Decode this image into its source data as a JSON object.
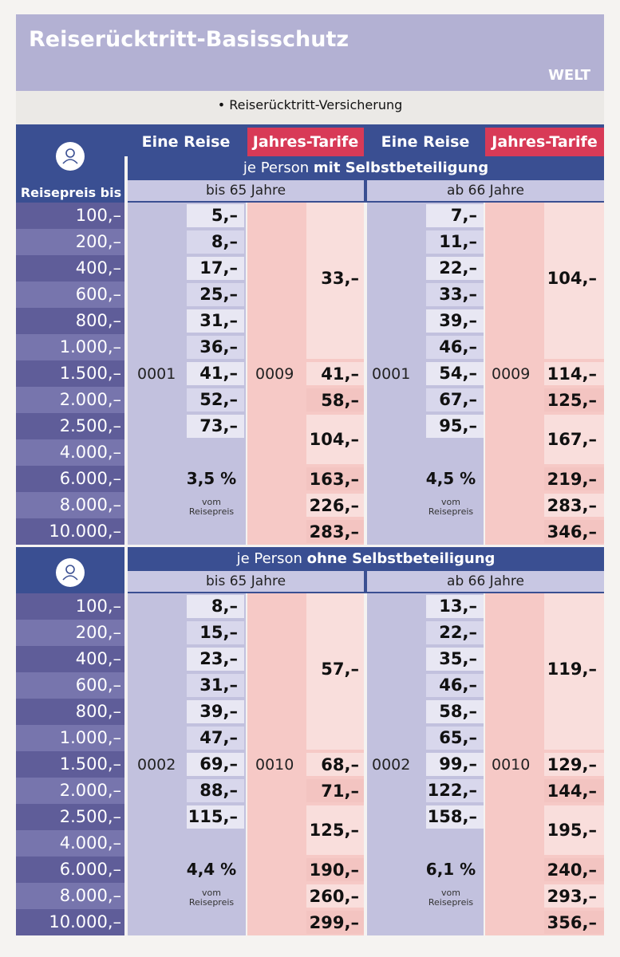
{
  "header": {
    "title": "Reiserücktritt-Basisschutz",
    "region": "WELT",
    "subtitle": "• Reiserücktritt-Versicherung"
  },
  "columns": {
    "eine_reise": "Eine Reise",
    "jahres_tarife": "Jahres-Tarife",
    "reisepreis_bis": "Reisepreis bis"
  },
  "colors": {
    "header_purple": "#b3b1d3",
    "navy": "#3a4f92",
    "red": "#d83a57",
    "row_dark": "#5f5d99",
    "row_light": "#7775ad",
    "lavender": "#c5c4e0",
    "pink": "#f6c6c6",
    "pale_pink": "#f9dedc"
  },
  "sections": [
    {
      "heading_prefix": "je Person ",
      "heading_bold": "mit Selbstbeteiligung",
      "age_left": "bis 65 Jahre",
      "age_right": "ab 66 Jahre",
      "rows": [
        "100,–",
        "200,–",
        "400,–",
        "600,–",
        "800,–",
        "1.000,–",
        "1.500,–",
        "2.000,–",
        "2.500,–",
        "4.000,–",
        "6.000,–",
        "8.000,–",
        "10.000,–"
      ],
      "code_single": "0001",
      "code_annual": "0009",
      "left_single": [
        "5,–",
        "8,–",
        "17,–",
        "25,–",
        "31,–",
        "36,–",
        "41,–",
        "52,–",
        "73,–"
      ],
      "left_pct": "3,5 %",
      "left_annual_group": "33,–",
      "left_annual": [
        "41,–",
        "58,–",
        "104,–",
        "163,–",
        "226,–",
        "283,–"
      ],
      "right_single": [
        "7,–",
        "11,–",
        "22,–",
        "33,–",
        "39,–",
        "46,–",
        "54,–",
        "67,–",
        "95,–"
      ],
      "right_pct": "4,5 %",
      "right_annual_group": "104,–",
      "right_annual": [
        "114,–",
        "125,–",
        "167,–",
        "219,–",
        "283,–",
        "346,–"
      ],
      "vom": "vom",
      "reisepreis": "Reisepreis"
    },
    {
      "heading_prefix": "je Person ",
      "heading_bold": "ohne Selbstbeteiligung",
      "age_left": "bis 65 Jahre",
      "age_right": "ab 66 Jahre",
      "rows": [
        "100,–",
        "200,–",
        "400,–",
        "600,–",
        "800,–",
        "1.000,–",
        "1.500,–",
        "2.000,–",
        "2.500,–",
        "4.000,–",
        "6.000,–",
        "8.000,–",
        "10.000,–"
      ],
      "code_single": "0002",
      "code_annual": "0010",
      "left_single": [
        "8,–",
        "15,–",
        "23,–",
        "31,–",
        "39,–",
        "47,–",
        "69,–",
        "88,–",
        "115,–"
      ],
      "left_pct": "4,4 %",
      "left_annual_group": "57,–",
      "left_annual": [
        "68,–",
        "71,–",
        "125,–",
        "190,–",
        "260,–",
        "299,–"
      ],
      "right_single": [
        "13,–",
        "22,–",
        "35,–",
        "46,–",
        "58,–",
        "65,–",
        "99,–",
        "122,–",
        "158,–"
      ],
      "right_pct": "6,1 %",
      "right_annual_group": "119,–",
      "right_annual": [
        "129,–",
        "144,–",
        "195,–",
        "240,–",
        "293,–",
        "356,–"
      ],
      "vom": "vom",
      "reisepreis": "Reisepreis"
    }
  ]
}
